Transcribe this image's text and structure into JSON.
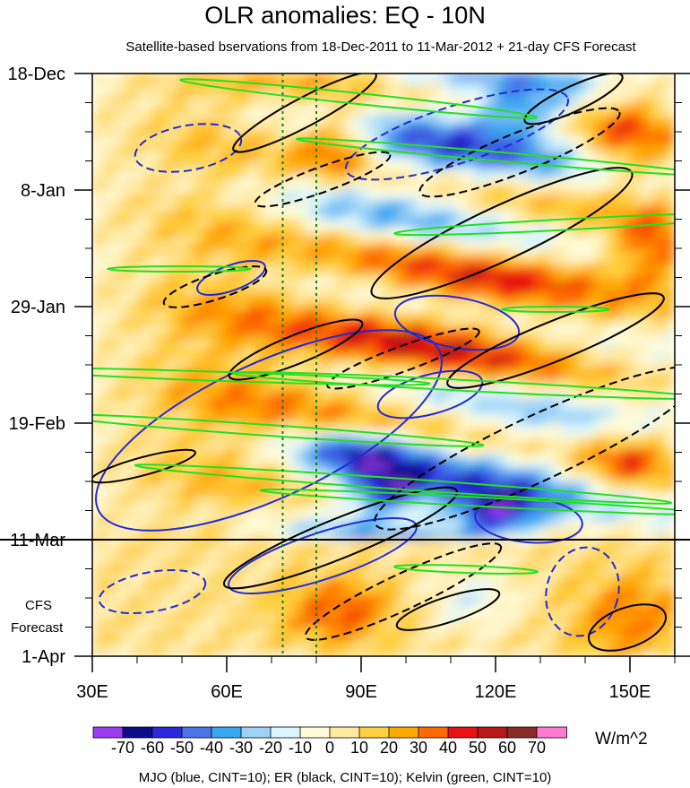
{
  "chart_data": {
    "type": "heatmap",
    "title": "OLR anomalies: EQ - 10N",
    "subtitle": "Satellite-based bservations from 18-Dec-2011 to 11-Mar-2012 + 21-day CFS Forecast",
    "x_ticks": [
      {
        "lon": 30,
        "label": "30E"
      },
      {
        "lon": 60,
        "label": "60E"
      },
      {
        "lon": 90,
        "label": "90E"
      },
      {
        "lon": 120,
        "label": "120E"
      },
      {
        "lon": 150,
        "label": "150E"
      }
    ],
    "xlim": [
      30,
      160
    ],
    "y_ticks": [
      {
        "day": 0,
        "label": "18-Dec"
      },
      {
        "day": 21,
        "label": "8-Jan"
      },
      {
        "day": 42,
        "label": "29-Jan"
      },
      {
        "day": 63,
        "label": "19-Feb"
      },
      {
        "day": 84,
        "label": "11-Mar"
      },
      {
        "day": 105,
        "label": "1-Apr"
      }
    ],
    "ylim_days": [
      0,
      105
    ],
    "observation_end_day": 84,
    "forecast_label": [
      "CFS",
      "Forecast"
    ],
    "reference_lines_lon": [
      72.5,
      80
    ],
    "colorbar": {
      "levels": [
        "-70",
        "-60",
        "-50",
        "-40",
        "-30",
        "-20",
        "-10",
        "0",
        "10",
        "20",
        "30",
        "40",
        "50",
        "60",
        "70"
      ],
      "colors": [
        "#9b3cf0",
        "#0d0d8c",
        "#2a2adc",
        "#4a74e8",
        "#3aa8f0",
        "#9ad2f8",
        "#d8f4fc",
        "#fffbd8",
        "#ffe8a0",
        "#ffd040",
        "#ffa800",
        "#ff6a00",
        "#e81010",
        "#b81818",
        "#8a2a2a",
        "#ff7ad0"
      ],
      "units": "W/m^2"
    },
    "overlay_legend": "MJO (blue, CINT=10); ER (black, CINT=10); Kelvin (green, CINT=10)",
    "overlay_colors": {
      "MJO": "#1f2bd6",
      "ER": "#000000",
      "Kelvin": "#22e022"
    }
  }
}
